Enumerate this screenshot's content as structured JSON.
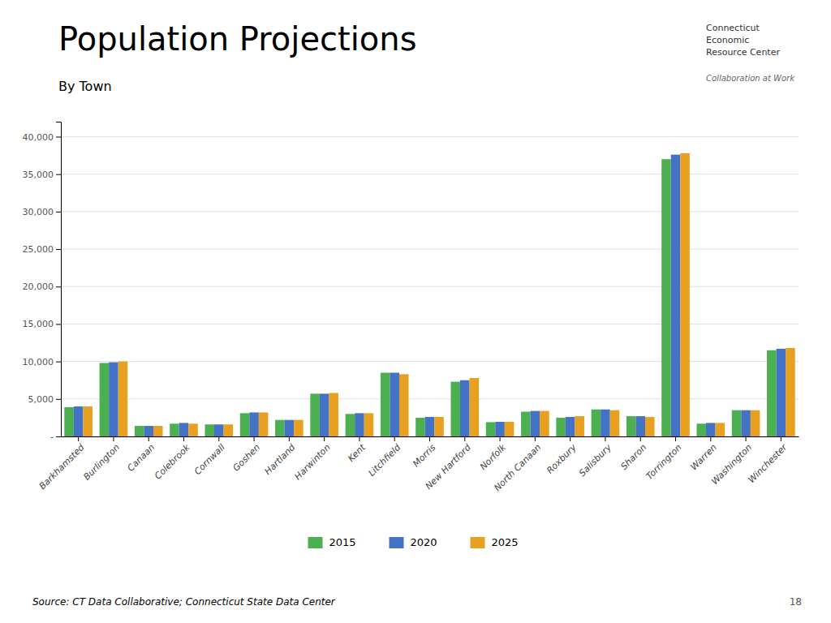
{
  "chart_data": {
    "type": "bar",
    "title": "Population Projections",
    "subtitle": "By Town",
    "annotations": [
      "Source: CT Data Collaborative; Connecticut State Data Center",
      "18",
      "Connecticut\nEconomic\nResource Center",
      "Collaboration at Work"
    ],
    "categories": [
      "Barkhamsted",
      "Burlington",
      "Canaan",
      "Colebrook",
      "Cornwall",
      "Goshen",
      "Hartland",
      "Harwinton",
      "Kent",
      "Litchfield",
      "Morris",
      "New Hartford",
      "Norfolk",
      "North Canaan",
      "Roxbury",
      "Salisbury",
      "Sharon",
      "Torrington",
      "Warren",
      "Washington",
      "Winchester"
    ],
    "series": [
      {
        "name": "2015",
        "color": "#4CAF50",
        "values": [
          3900,
          9800,
          1400,
          1700,
          1600,
          3100,
          2200,
          5700,
          3000,
          8500,
          2500,
          7300,
          1900,
          3300,
          2500,
          3600,
          2700,
          37000,
          1700,
          3500,
          11500
        ]
      },
      {
        "name": "2020",
        "color": "#4472C4",
        "values": [
          4000,
          9900,
          1400,
          1800,
          1600,
          3200,
          2200,
          5700,
          3100,
          8500,
          2600,
          7500,
          1950,
          3400,
          2600,
          3600,
          2700,
          37600,
          1800,
          3500,
          11700
        ]
      },
      {
        "name": "2025",
        "color": "#E8A020",
        "values": [
          4000,
          10000,
          1400,
          1700,
          1600,
          3200,
          2200,
          5800,
          3100,
          8300,
          2600,
          7800,
          1950,
          3400,
          2700,
          3500,
          2600,
          37800,
          1800,
          3500,
          11800
        ]
      }
    ],
    "ylim": [
      0,
      42000
    ],
    "yticks": [
      {
        "value": 0,
        "label": "-"
      },
      {
        "value": 5000,
        "label": "5,000"
      },
      {
        "value": 10000,
        "label": "10,000"
      },
      {
        "value": 15000,
        "label": "15,000"
      },
      {
        "value": 20000,
        "label": "20,000"
      },
      {
        "value": 25000,
        "label": "25,000"
      },
      {
        "value": 30000,
        "label": "30,000"
      },
      {
        "value": 35000,
        "label": "35,000"
      },
      {
        "value": 40000,
        "label": "40,000"
      }
    ],
    "grid": true,
    "legend": "bottom"
  }
}
